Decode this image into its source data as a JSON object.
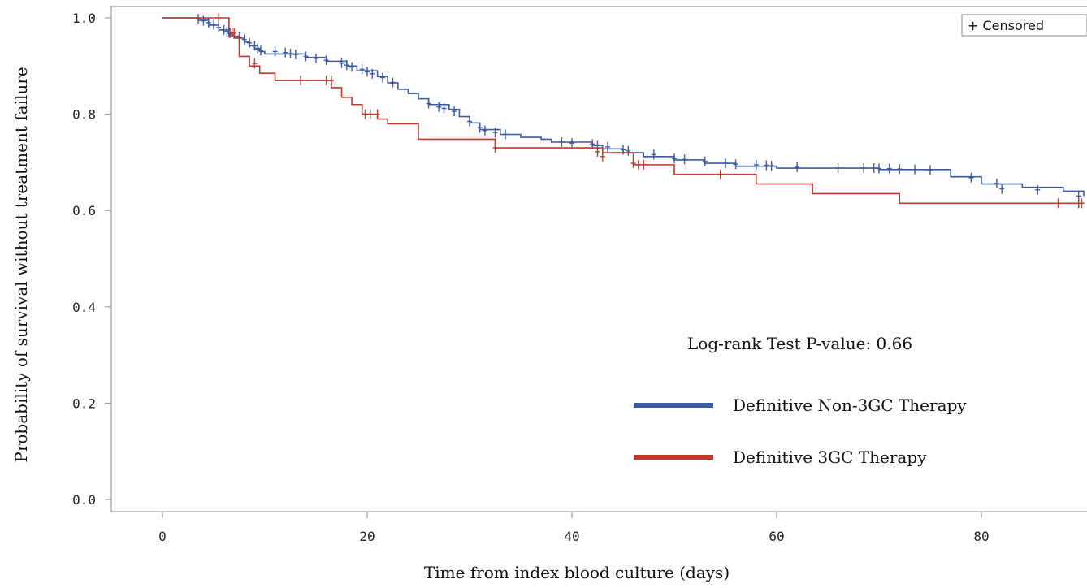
{
  "chart_data": {
    "type": "line",
    "step": true,
    "xlabel": "Time from index blood culture (days)",
    "ylabel": "Probability of survival without treatment failure",
    "xlim": [
      -5,
      90
    ],
    "ylim": [
      -0.02,
      1.0
    ],
    "x_ticks": [
      0,
      20,
      40,
      60,
      80
    ],
    "x_tick_labels": [
      "0",
      "20",
      "40",
      "60",
      "80"
    ],
    "y_ticks": [
      0.0,
      0.2,
      0.4,
      0.6,
      0.8,
      1.0
    ],
    "y_tick_labels": [
      "0.0",
      "0.2",
      "0.4",
      "0.6",
      "0.8",
      "1.0"
    ],
    "censored_legend": "+ Censored",
    "annotation": "Log-rank Test P-value: 0.66",
    "grid": false,
    "series": [
      {
        "name": "Definitive Non-3GC Therapy",
        "color": "#3b5ba5",
        "x": [
          0,
          3.5,
          4.5,
          5.5,
          6.5,
          7.0,
          8.0,
          8.5,
          9.0,
          9.5,
          10.0,
          14.0,
          16.0,
          18.0,
          19.0,
          21.0,
          22.0,
          23.0,
          24.0,
          25.0,
          26.0,
          28.0,
          29.0,
          30.0,
          31.0,
          33.0,
          35.0,
          37.0,
          38.0,
          42.0,
          43.0,
          45.0,
          47.0,
          50.0,
          53.0,
          56.0,
          60.0,
          70.0,
          77.0,
          80.0,
          84.0,
          88.0,
          90.0
        ],
        "y": [
          1.0,
          0.995,
          0.985,
          0.975,
          0.965,
          0.958,
          0.95,
          0.942,
          0.935,
          0.93,
          0.925,
          0.918,
          0.91,
          0.9,
          0.89,
          0.878,
          0.865,
          0.852,
          0.843,
          0.832,
          0.82,
          0.81,
          0.795,
          0.782,
          0.768,
          0.758,
          0.752,
          0.748,
          0.742,
          0.735,
          0.728,
          0.72,
          0.712,
          0.705,
          0.698,
          0.692,
          0.688,
          0.685,
          0.67,
          0.655,
          0.648,
          0.64,
          0.63
        ],
        "censored_x": [
          3.5,
          4.0,
          4.5,
          5.0,
          5.5,
          6.0,
          6.3,
          6.6,
          7.5,
          8.0,
          8.5,
          9.0,
          9.3,
          9.6,
          11,
          12,
          12.5,
          13,
          14,
          15,
          16,
          17.5,
          18,
          18.5,
          19.5,
          20,
          20.5,
          21.5,
          22.5,
          26,
          27,
          27.5,
          28.5,
          30,
          31,
          31.5,
          32.5,
          33.5,
          39,
          40,
          42,
          42.5,
          43.5,
          45,
          45.5,
          48,
          50,
          51,
          53,
          55,
          56,
          58,
          59,
          59.5,
          62,
          66,
          68.5,
          69.5,
          70,
          71,
          72,
          73.5,
          75,
          79,
          81.5,
          82,
          85.5,
          89.5
        ],
        "censored_y": [
          0.998,
          0.994,
          0.99,
          0.986,
          0.98,
          0.975,
          0.972,
          0.968,
          0.96,
          0.955,
          0.948,
          0.942,
          0.937,
          0.932,
          0.93,
          0.928,
          0.926,
          0.924,
          0.92,
          0.916,
          0.912,
          0.906,
          0.902,
          0.898,
          0.893,
          0.888,
          0.884,
          0.876,
          0.866,
          0.822,
          0.815,
          0.812,
          0.806,
          0.785,
          0.772,
          0.766,
          0.762,
          0.758,
          0.742,
          0.74,
          0.738,
          0.736,
          0.732,
          0.726,
          0.724,
          0.716,
          0.708,
          0.706,
          0.702,
          0.698,
          0.696,
          0.695,
          0.694,
          0.693,
          0.69,
          0.688,
          0.688,
          0.688,
          0.687,
          0.687,
          0.686,
          0.685,
          0.684,
          0.668,
          0.656,
          0.645,
          0.643,
          0.63
        ]
      },
      {
        "name": "Definitive 3GC Therapy",
        "color": "#c0392b",
        "x": [
          0,
          6.5,
          7.5,
          8.5,
          9.5,
          11.0,
          16.5,
          17.5,
          18.5,
          19.5,
          21.0,
          22.0,
          25.0,
          32.5,
          43.0,
          46.0,
          50.0,
          58.0,
          63.5,
          72.0,
          90.0
        ],
        "y": [
          1.0,
          0.962,
          0.92,
          0.9,
          0.885,
          0.87,
          0.855,
          0.835,
          0.82,
          0.8,
          0.79,
          0.78,
          0.748,
          0.73,
          0.72,
          0.695,
          0.675,
          0.655,
          0.635,
          0.615,
          0.615
        ],
        "censored_x": [
          5.5,
          6.8,
          7.0,
          9.0,
          13.5,
          16.0,
          16.5,
          19.8,
          20.3,
          21.0,
          32.5,
          42.5,
          43.0,
          46.0,
          46.5,
          47.0,
          54.5,
          87.5,
          89.5,
          89.8
        ],
        "censored_y": [
          1.0,
          0.97,
          0.968,
          0.905,
          0.87,
          0.87,
          0.87,
          0.8,
          0.8,
          0.8,
          0.73,
          0.722,
          0.712,
          0.698,
          0.695,
          0.695,
          0.675,
          0.615,
          0.615,
          0.615
        ]
      }
    ]
  }
}
